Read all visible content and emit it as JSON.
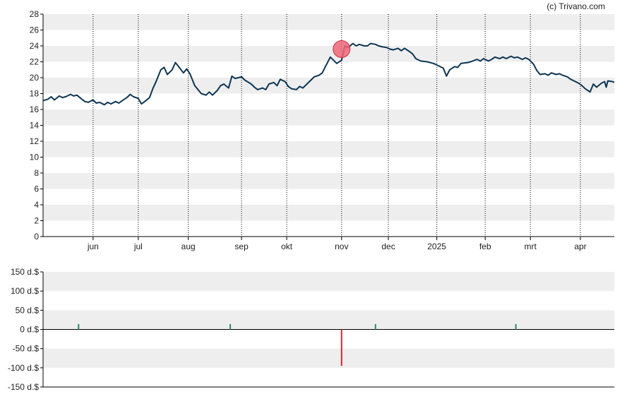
{
  "credit": "(c) Trivano.com",
  "colors": {
    "line": "#0d3553",
    "band": "#eeeeee",
    "buy": "#2e8b57",
    "sell": "#dd2233",
    "marker_fill": "#ee6677",
    "marker_stroke": "#cc3344",
    "axis": "#000000"
  },
  "chart_data": [
    {
      "type": "line",
      "title": "",
      "ylim": [
        0,
        28
      ],
      "yticks": [
        "0",
        "2",
        "4",
        "6",
        "8",
        "10",
        "12",
        "14",
        "16",
        "18",
        "20",
        "22",
        "24",
        "26",
        "28"
      ],
      "xlim": [
        "2024-05-03",
        "2025-04-22"
      ],
      "xticks": [
        {
          "label": "jun",
          "date": "2024-06-03"
        },
        {
          "label": "jul",
          "date": "2024-07-01"
        },
        {
          "label": "aug",
          "date": "2024-08-01"
        },
        {
          "label": "sep",
          "date": "2024-09-03"
        },
        {
          "label": "okt",
          "date": "2024-10-01"
        },
        {
          "label": "nov",
          "date": "2024-11-04"
        },
        {
          "label": "dec",
          "date": "2024-12-03"
        },
        {
          "label": "2025",
          "date": "2025-01-02"
        },
        {
          "label": "feb",
          "date": "2025-02-01"
        },
        {
          "label": "mrt",
          "date": "2025-03-01"
        },
        {
          "label": "apr",
          "date": "2025-04-01"
        }
      ],
      "grid": "alternating horizontal bands, dotted vertical lines at month starts",
      "series": [
        {
          "points": [
            [
              "2024-05-03",
              17.1
            ],
            [
              "2024-05-06",
              17.3
            ],
            [
              "2024-05-08",
              17.6
            ],
            [
              "2024-05-10",
              17.2
            ],
            [
              "2024-05-13",
              17.7
            ],
            [
              "2024-05-15",
              17.5
            ],
            [
              "2024-05-17",
              17.6
            ],
            [
              "2024-05-20",
              17.9
            ],
            [
              "2024-05-22",
              17.7
            ],
            [
              "2024-05-24",
              17.8
            ],
            [
              "2024-05-27",
              17.3
            ],
            [
              "2024-05-29",
              17.0
            ],
            [
              "2024-05-31",
              16.9
            ],
            [
              "2024-06-03",
              17.2
            ],
            [
              "2024-06-05",
              16.8
            ],
            [
              "2024-06-07",
              16.9
            ],
            [
              "2024-06-10",
              16.6
            ],
            [
              "2024-06-12",
              16.9
            ],
            [
              "2024-06-14",
              16.7
            ],
            [
              "2024-06-17",
              17.0
            ],
            [
              "2024-06-19",
              16.8
            ],
            [
              "2024-06-21",
              17.1
            ],
            [
              "2024-06-24",
              17.5
            ],
            [
              "2024-06-26",
              17.9
            ],
            [
              "2024-06-28",
              17.6
            ],
            [
              "2024-07-01",
              17.4
            ],
            [
              "2024-07-03",
              16.7
            ],
            [
              "2024-07-05",
              17.0
            ],
            [
              "2024-07-08",
              17.5
            ],
            [
              "2024-07-10",
              18.6
            ],
            [
              "2024-07-12",
              19.5
            ],
            [
              "2024-07-15",
              21.0
            ],
            [
              "2024-07-17",
              21.3
            ],
            [
              "2024-07-19",
              20.4
            ],
            [
              "2024-07-22",
              21.0
            ],
            [
              "2024-07-24",
              21.9
            ],
            [
              "2024-07-26",
              21.4
            ],
            [
              "2024-07-29",
              20.6
            ],
            [
              "2024-07-31",
              21.1
            ],
            [
              "2024-08-02",
              20.5
            ],
            [
              "2024-08-05",
              19.0
            ],
            [
              "2024-08-07",
              18.5
            ],
            [
              "2024-08-09",
              18.0
            ],
            [
              "2024-08-12",
              17.8
            ],
            [
              "2024-08-14",
              18.2
            ],
            [
              "2024-08-16",
              17.8
            ],
            [
              "2024-08-19",
              18.4
            ],
            [
              "2024-08-21",
              19.0
            ],
            [
              "2024-08-23",
              19.2
            ],
            [
              "2024-08-26",
              18.7
            ],
            [
              "2024-08-28",
              20.2
            ],
            [
              "2024-08-30",
              19.9
            ],
            [
              "2024-09-03",
              20.1
            ],
            [
              "2024-09-05",
              19.7
            ],
            [
              "2024-09-09",
              19.2
            ],
            [
              "2024-09-11",
              18.8
            ],
            [
              "2024-09-13",
              18.5
            ],
            [
              "2024-09-16",
              18.7
            ],
            [
              "2024-09-18",
              18.5
            ],
            [
              "2024-09-20",
              19.2
            ],
            [
              "2024-09-23",
              19.4
            ],
            [
              "2024-09-25",
              19.0
            ],
            [
              "2024-09-27",
              19.8
            ],
            [
              "2024-09-30",
              19.5
            ],
            [
              "2024-10-02",
              18.9
            ],
            [
              "2024-10-04",
              18.6
            ],
            [
              "2024-10-07",
              18.5
            ],
            [
              "2024-10-09",
              18.9
            ],
            [
              "2024-10-11",
              18.7
            ],
            [
              "2024-10-14",
              19.3
            ],
            [
              "2024-10-16",
              19.7
            ],
            [
              "2024-10-18",
              20.1
            ],
            [
              "2024-10-21",
              20.3
            ],
            [
              "2024-10-23",
              20.6
            ],
            [
              "2024-10-25",
              21.4
            ],
            [
              "2024-10-28",
              22.6
            ],
            [
              "2024-10-30",
              22.2
            ],
            [
              "2024-11-01",
              21.8
            ],
            [
              "2024-11-04",
              22.2
            ],
            [
              "2024-11-06",
              24.0
            ],
            [
              "2024-11-08",
              23.8
            ],
            [
              "2024-11-11",
              24.3
            ],
            [
              "2024-11-13",
              24.0
            ],
            [
              "2024-11-15",
              24.2
            ],
            [
              "2024-11-18",
              24.0
            ],
            [
              "2024-11-20",
              24.0
            ],
            [
              "2024-11-22",
              24.3
            ],
            [
              "2024-11-25",
              24.2
            ],
            [
              "2024-11-27",
              24.0
            ],
            [
              "2024-11-29",
              23.9
            ],
            [
              "2024-12-02",
              23.8
            ],
            [
              "2024-12-04",
              23.6
            ],
            [
              "2024-12-06",
              23.5
            ],
            [
              "2024-12-09",
              23.7
            ],
            [
              "2024-12-11",
              23.4
            ],
            [
              "2024-12-13",
              23.7
            ],
            [
              "2024-12-16",
              23.3
            ],
            [
              "2024-12-18",
              23.0
            ],
            [
              "2024-12-20",
              22.4
            ],
            [
              "2024-12-23",
              22.1
            ],
            [
              "2024-12-27",
              22.0
            ],
            [
              "2024-12-31",
              21.8
            ],
            [
              "2025-01-03",
              21.5
            ],
            [
              "2025-01-06",
              21.2
            ],
            [
              "2025-01-08",
              20.2
            ],
            [
              "2025-01-10",
              21.0
            ],
            [
              "2025-01-13",
              21.4
            ],
            [
              "2025-01-15",
              21.3
            ],
            [
              "2025-01-17",
              21.8
            ],
            [
              "2025-01-21",
              21.9
            ],
            [
              "2025-01-23",
              22.0
            ],
            [
              "2025-01-27",
              22.3
            ],
            [
              "2025-01-29",
              22.1
            ],
            [
              "2025-01-31",
              22.4
            ],
            [
              "2025-02-03",
              22.1
            ],
            [
              "2025-02-05",
              22.3
            ],
            [
              "2025-02-07",
              22.6
            ],
            [
              "2025-02-10",
              22.4
            ],
            [
              "2025-02-12",
              22.6
            ],
            [
              "2025-02-14",
              22.4
            ],
            [
              "2025-02-17",
              22.7
            ],
            [
              "2025-02-19",
              22.5
            ],
            [
              "2025-02-21",
              22.6
            ],
            [
              "2025-02-24",
              22.3
            ],
            [
              "2025-02-26",
              22.5
            ],
            [
              "2025-02-28",
              22.3
            ],
            [
              "2025-03-03",
              21.7
            ],
            [
              "2025-03-05",
              20.9
            ],
            [
              "2025-03-07",
              20.4
            ],
            [
              "2025-03-10",
              20.5
            ],
            [
              "2025-03-12",
              20.3
            ],
            [
              "2025-03-14",
              20.6
            ],
            [
              "2025-03-17",
              20.4
            ],
            [
              "2025-03-19",
              20.5
            ],
            [
              "2025-03-21",
              20.3
            ],
            [
              "2025-03-24",
              20.1
            ],
            [
              "2025-03-26",
              19.8
            ],
            [
              "2025-03-28",
              19.6
            ],
            [
              "2025-03-31",
              19.3
            ],
            [
              "2025-04-02",
              19.0
            ],
            [
              "2025-04-04",
              18.6
            ],
            [
              "2025-04-07",
              18.2
            ],
            [
              "2025-04-09",
              19.2
            ],
            [
              "2025-04-11",
              18.8
            ],
            [
              "2025-04-14",
              19.3
            ],
            [
              "2025-04-16",
              19.5
            ],
            [
              "2025-04-17",
              18.8
            ],
            [
              "2025-04-18",
              19.6
            ],
            [
              "2025-04-21",
              19.5
            ],
            [
              "2025-04-22",
              19.4
            ]
          ]
        }
      ],
      "markers": [
        {
          "date": "2024-11-04",
          "value": 23.6,
          "shape": "circle"
        }
      ]
    },
    {
      "type": "bar",
      "title": "",
      "ylim": [
        -150,
        150
      ],
      "yticks": [
        "150 d.$",
        "100 d.$",
        "50 d.$",
        "0 d.$",
        "-50 d.$",
        "-100 d.$",
        "-150 d.$"
      ],
      "bars": [
        {
          "date": "2024-05-25",
          "value": 14,
          "kind": "buy"
        },
        {
          "date": "2024-08-27",
          "value": 14,
          "kind": "buy"
        },
        {
          "date": "2024-11-04",
          "value": -95,
          "kind": "sell"
        },
        {
          "date": "2024-11-25",
          "value": 14,
          "kind": "buy"
        },
        {
          "date": "2025-02-20",
          "value": 14,
          "kind": "buy"
        }
      ]
    }
  ]
}
